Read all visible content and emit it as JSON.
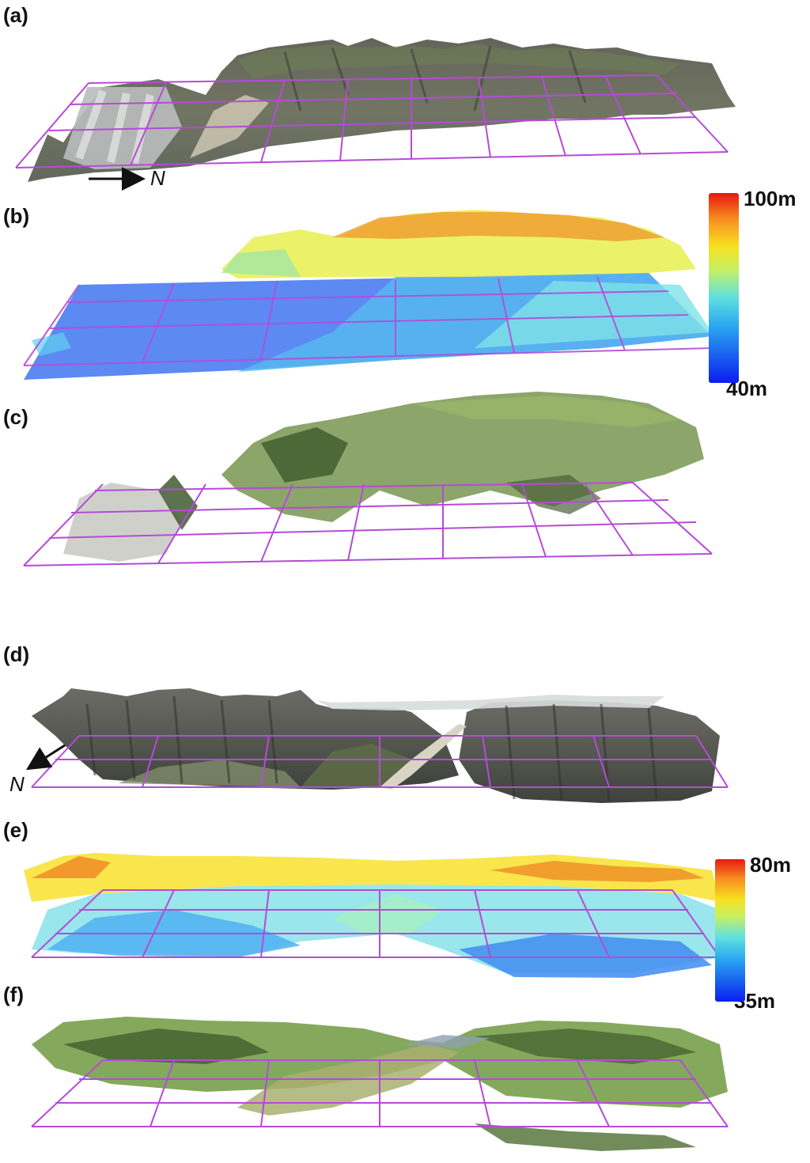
{
  "panels": {
    "a": {
      "label": "(a)"
    },
    "b": {
      "label": "(b)",
      "colorbar": {
        "max": "100m",
        "min": "40m"
      }
    },
    "c": {
      "label": "(c)"
    },
    "d": {
      "label": "(d)"
    },
    "e": {
      "label": "(e)",
      "colorbar": {
        "max": "80m",
        "min": "35m"
      }
    },
    "f": {
      "label": "(f)"
    }
  },
  "north_arrow": {
    "label": "N"
  },
  "colors": {
    "grid": "#b54bd8",
    "terrain_dark": "#4e4f47",
    "vegetation": "#6f8f45",
    "jet_low": "#0a1ef0",
    "jet_high": "#e81810"
  }
}
